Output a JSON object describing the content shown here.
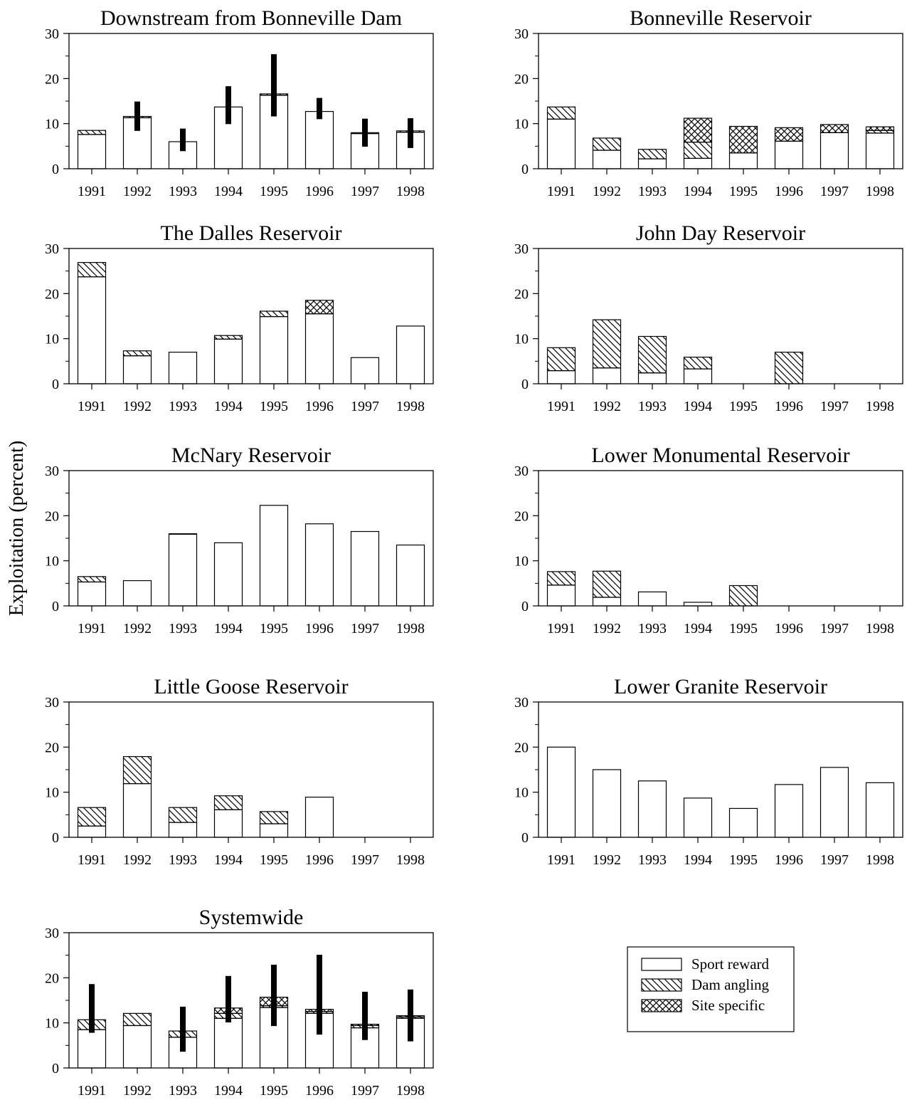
{
  "ylabel": "Exploitation (percent)",
  "legend": {
    "entries": [
      {
        "label": "Sport reward",
        "pattern": "none"
      },
      {
        "label": "Dam angling",
        "pattern": "diagonal"
      },
      {
        "label": "Site specific",
        "pattern": "crosshatch"
      }
    ]
  },
  "chart_data": [
    {
      "type": "bar",
      "stacked": true,
      "title": "Downstream from Bonneville Dam",
      "categories": [
        "1991",
        "1992",
        "1993",
        "1994",
        "1995",
        "1996",
        "1997",
        "1998"
      ],
      "ylim": [
        0,
        30
      ],
      "yticks": [
        0,
        10,
        20,
        30
      ],
      "series": [
        {
          "pattern": "none",
          "values": [
            7.6,
            11.3,
            6.0,
            13.7,
            16.3,
            12.7,
            7.8,
            8.1
          ]
        },
        {
          "pattern": "diagonal",
          "values": [
            0.9,
            0.3,
            0,
            0,
            0.3,
            0,
            0.2,
            0.3
          ]
        },
        {
          "pattern": "crosshatch",
          "values": [
            0,
            0,
            0,
            0,
            0,
            0,
            0,
            0
          ]
        }
      ],
      "error_bars": [
        [
          8.5,
          8.5
        ],
        [
          8.4,
          14.9
        ],
        [
          3.9,
          8.9
        ],
        [
          9.9,
          18.3
        ],
        [
          11.6,
          25.4
        ],
        [
          11.0,
          15.7
        ],
        [
          4.9,
          11.1
        ],
        [
          4.6,
          11.2
        ]
      ]
    },
    {
      "type": "bar",
      "stacked": true,
      "title": "Bonneville Reservoir",
      "categories": [
        "1991",
        "1992",
        "1993",
        "1994",
        "1995",
        "1996",
        "1997",
        "1998"
      ],
      "ylim": [
        0,
        30
      ],
      "yticks": [
        0,
        10,
        20,
        30
      ],
      "series": [
        {
          "pattern": "none",
          "values": [
            11.0,
            4.1,
            2.2,
            2.3,
            3.5,
            6.1,
            8.0,
            7.9
          ]
        },
        {
          "pattern": "diagonal",
          "values": [
            2.7,
            2.7,
            2.1,
            3.6,
            0,
            0,
            0,
            0.6
          ]
        },
        {
          "pattern": "crosshatch",
          "values": [
            0,
            0,
            0,
            5.3,
            5.9,
            3.0,
            1.8,
            0.8
          ]
        }
      ]
    },
    {
      "type": "bar",
      "stacked": true,
      "title": "The Dalles Reservoir",
      "categories": [
        "1991",
        "1992",
        "1993",
        "1994",
        "1995",
        "1996",
        "1997",
        "1998"
      ],
      "ylim": [
        0,
        30
      ],
      "yticks": [
        0,
        10,
        20,
        30
      ],
      "series": [
        {
          "pattern": "none",
          "values": [
            23.7,
            6.2,
            7.0,
            9.9,
            14.9,
            15.5,
            5.8,
            12.8
          ]
        },
        {
          "pattern": "diagonal",
          "values": [
            3.2,
            1.1,
            0,
            0.8,
            1.2,
            0,
            0,
            0
          ]
        },
        {
          "pattern": "crosshatch",
          "values": [
            0,
            0,
            0,
            0,
            0,
            3.0,
            0,
            0
          ]
        }
      ]
    },
    {
      "type": "bar",
      "stacked": true,
      "title": "John Day Reservoir",
      "categories": [
        "1991",
        "1992",
        "1993",
        "1994",
        "1995",
        "1996",
        "1997",
        "1998"
      ],
      "ylim": [
        0,
        30
      ],
      "yticks": [
        0,
        10,
        20,
        30
      ],
      "series": [
        {
          "pattern": "none",
          "values": [
            2.9,
            3.5,
            2.4,
            3.3,
            0,
            0,
            0,
            0
          ]
        },
        {
          "pattern": "diagonal",
          "values": [
            5.1,
            10.7,
            8.1,
            2.6,
            0,
            7.0,
            0,
            0
          ]
        },
        {
          "pattern": "crosshatch",
          "values": [
            0,
            0,
            0,
            0,
            0,
            0,
            0,
            0
          ]
        }
      ]
    },
    {
      "type": "bar",
      "stacked": true,
      "title": "McNary Reservoir",
      "categories": [
        "1991",
        "1992",
        "1993",
        "1994",
        "1995",
        "1996",
        "1997",
        "1998"
      ],
      "ylim": [
        0,
        30
      ],
      "yticks": [
        0,
        10,
        20,
        30
      ],
      "series": [
        {
          "pattern": "none",
          "values": [
            5.3,
            5.6,
            15.9,
            14.0,
            22.3,
            18.2,
            16.5,
            13.5
          ]
        },
        {
          "pattern": "diagonal",
          "values": [
            1.2,
            0,
            0.1,
            0,
            0,
            0,
            0,
            0
          ]
        },
        {
          "pattern": "crosshatch",
          "values": [
            0,
            0,
            0,
            0,
            0,
            0,
            0,
            0
          ]
        }
      ]
    },
    {
      "type": "bar",
      "stacked": true,
      "title": "Lower Monumental Reservoir",
      "categories": [
        "1991",
        "1992",
        "1993",
        "1994",
        "1995",
        "1996",
        "1997",
        "1998"
      ],
      "ylim": [
        0,
        30
      ],
      "yticks": [
        0,
        10,
        20,
        30
      ],
      "series": [
        {
          "pattern": "none",
          "values": [
            4.6,
            1.9,
            3.1,
            0.8,
            0,
            0,
            0,
            0
          ]
        },
        {
          "pattern": "diagonal",
          "values": [
            3.0,
            5.8,
            0,
            0,
            4.5,
            0,
            0,
            0
          ]
        },
        {
          "pattern": "crosshatch",
          "values": [
            0,
            0,
            0,
            0,
            0,
            0,
            0,
            0
          ]
        }
      ]
    },
    {
      "type": "bar",
      "stacked": true,
      "title": "Little Goose Reservoir",
      "categories": [
        "1991",
        "1992",
        "1993",
        "1994",
        "1995",
        "1996",
        "1997",
        "1998"
      ],
      "ylim": [
        0,
        30
      ],
      "yticks": [
        0,
        10,
        20,
        30
      ],
      "series": [
        {
          "pattern": "none",
          "values": [
            2.5,
            11.9,
            3.3,
            6.1,
            3.0,
            8.9,
            0,
            0
          ]
        },
        {
          "pattern": "diagonal",
          "values": [
            4.1,
            6.0,
            3.3,
            3.1,
            2.7,
            0,
            0,
            0
          ]
        },
        {
          "pattern": "crosshatch",
          "values": [
            0,
            0,
            0,
            0,
            0,
            0,
            0,
            0
          ]
        }
      ]
    },
    {
      "type": "bar",
      "stacked": true,
      "title": "Lower Granite Reservoir",
      "categories": [
        "1991",
        "1992",
        "1993",
        "1994",
        "1995",
        "1996",
        "1997",
        "1998"
      ],
      "ylim": [
        0,
        30
      ],
      "yticks": [
        0,
        10,
        20,
        30
      ],
      "series": [
        {
          "pattern": "none",
          "values": [
            20.0,
            15.0,
            12.5,
            8.7,
            6.4,
            11.7,
            15.5,
            12.1
          ]
        },
        {
          "pattern": "diagonal",
          "values": [
            0,
            0,
            0,
            0,
            0,
            0,
            0,
            0
          ]
        },
        {
          "pattern": "crosshatch",
          "values": [
            0,
            0,
            0,
            0,
            0,
            0,
            0,
            0
          ]
        }
      ]
    },
    {
      "type": "bar",
      "stacked": true,
      "title": "Systemwide",
      "categories": [
        "1991",
        "1992",
        "1993",
        "1994",
        "1995",
        "1996",
        "1997",
        "1998"
      ],
      "ylim": [
        0,
        30
      ],
      "yticks": [
        0,
        10,
        20,
        30
      ],
      "series": [
        {
          "pattern": "none",
          "values": [
            8.5,
            9.4,
            6.8,
            11.0,
            13.4,
            12.1,
            8.9,
            11.0
          ]
        },
        {
          "pattern": "diagonal",
          "values": [
            2.2,
            2.7,
            1.4,
            1.1,
            0.4,
            0.4,
            0.5,
            0.3
          ]
        },
        {
          "pattern": "crosshatch",
          "values": [
            0,
            0,
            0,
            1.2,
            1.9,
            0.5,
            0.3,
            0.3
          ]
        }
      ],
      "error_bars": [
        [
          7.8,
          18.6
        ],
        [
          0,
          0
        ],
        [
          3.6,
          13.6
        ],
        [
          10.1,
          20.4
        ],
        [
          9.3,
          22.9
        ],
        [
          7.4,
          25.1
        ],
        [
          6.2,
          16.9
        ],
        [
          5.9,
          17.4
        ]
      ]
    }
  ]
}
